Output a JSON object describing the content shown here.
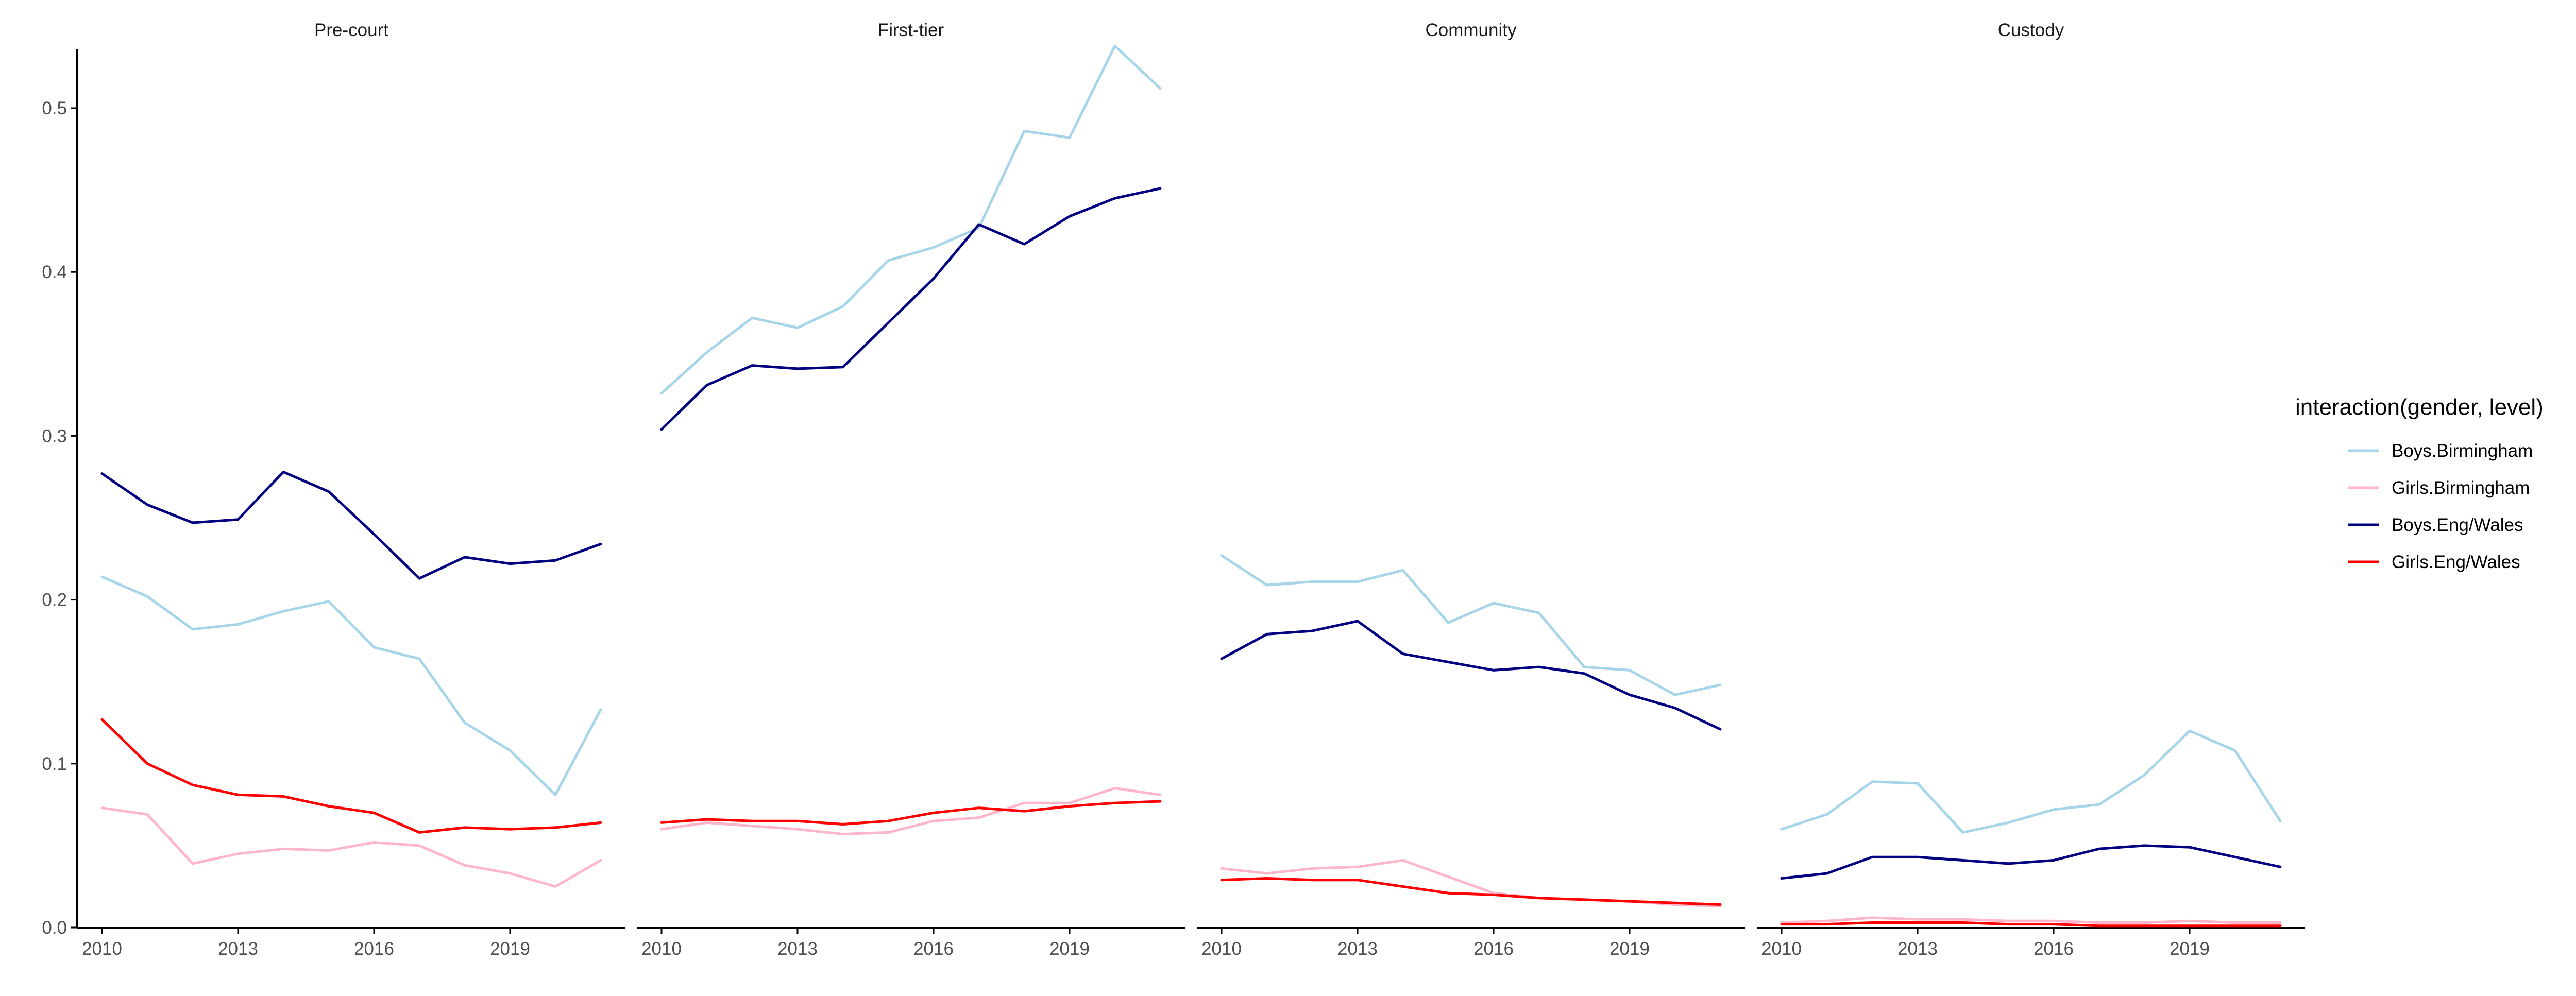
{
  "chart_data": {
    "type": "line",
    "facets": [
      "Pre-court",
      "First-tier",
      "Community",
      "Custody"
    ],
    "x": [
      2010,
      2011,
      2012,
      2013,
      2014,
      2015,
      2016,
      2017,
      2018,
      2019,
      2020,
      2021
    ],
    "x_ticks": [
      "2010",
      "2013",
      "2016",
      "2019"
    ],
    "y_ticks": [
      "0.0",
      "0.1",
      "0.2",
      "0.3",
      "0.4",
      "0.5"
    ],
    "ylim": [
      0,
      0.537
    ],
    "xlim": [
      2009.8,
      2021.2
    ],
    "legend": {
      "title": "interaction(gender, level)",
      "position": "right",
      "entries": [
        "Boys.Birmingham",
        "Girls.Birmingham",
        "Boys.Eng/Wales",
        "Girls.Eng/Wales"
      ]
    },
    "colors": {
      "Boys.Birmingham": "#a6d5ea",
      "Girls.Birmingham": "#ffb6c8",
      "Boys.Eng/Wales": "#000080",
      "Girls.Eng/Wales": "#ff0000"
    },
    "panels": [
      {
        "facet": "Pre-court",
        "series": [
          {
            "name": "Boys.Birmingham",
            "values": [
              0.214,
              0.202,
              0.182,
              0.185,
              0.193,
              0.199,
              0.171,
              0.164,
              0.125,
              0.108,
              0.081,
              0.133
            ]
          },
          {
            "name": "Girls.Birmingham",
            "values": [
              0.073,
              0.069,
              0.039,
              0.045,
              0.048,
              0.047,
              0.052,
              0.05,
              0.038,
              0.033,
              0.025,
              0.041
            ]
          },
          {
            "name": "Boys.Eng/Wales",
            "values": [
              0.277,
              0.258,
              0.247,
              0.249,
              0.278,
              0.266,
              0.24,
              0.213,
              0.226,
              0.222,
              0.224,
              0.234
            ]
          },
          {
            "name": "Girls.Eng/Wales",
            "values": [
              0.127,
              0.1,
              0.087,
              0.081,
              0.08,
              0.074,
              0.07,
              0.058,
              0.061,
              0.06,
              0.061,
              0.064
            ]
          }
        ]
      },
      {
        "facet": "First-tier",
        "series": [
          {
            "name": "Boys.Birmingham",
            "values": [
              0.326,
              0.351,
              0.372,
              0.366,
              0.379,
              0.407,
              0.415,
              0.427,
              0.486,
              0.482,
              0.538,
              0.512
            ]
          },
          {
            "name": "Girls.Birmingham",
            "values": [
              0.06,
              0.064,
              0.062,
              0.06,
              0.057,
              0.058,
              0.065,
              0.067,
              0.076,
              0.076,
              0.085,
              0.081
            ]
          },
          {
            "name": "Boys.Eng/Wales",
            "values": [
              0.304,
              0.331,
              0.343,
              0.341,
              0.342,
              0.369,
              0.396,
              0.429,
              0.417,
              0.434,
              0.445,
              0.451
            ]
          },
          {
            "name": "Girls.Eng/Wales",
            "values": [
              0.064,
              0.066,
              0.065,
              0.065,
              0.063,
              0.065,
              0.07,
              0.073,
              0.071,
              0.074,
              0.076,
              0.077
            ]
          }
        ]
      },
      {
        "facet": "Community",
        "series": [
          {
            "name": "Boys.Birmingham",
            "values": [
              0.227,
              0.209,
              0.211,
              0.211,
              0.218,
              0.186,
              0.198,
              0.192,
              0.159,
              0.157,
              0.142,
              0.148
            ]
          },
          {
            "name": "Girls.Birmingham",
            "values": [
              0.036,
              0.033,
              0.036,
              0.037,
              0.041,
              0.031,
              0.021,
              0.018,
              0.017,
              0.016,
              0.014,
              0.013
            ]
          },
          {
            "name": "Boys.Eng/Wales",
            "values": [
              0.164,
              0.179,
              0.181,
              0.187,
              0.167,
              0.162,
              0.157,
              0.159,
              0.155,
              0.142,
              0.134,
              0.121
            ]
          },
          {
            "name": "Girls.Eng/Wales",
            "values": [
              0.029,
              0.03,
              0.029,
              0.029,
              0.025,
              0.021,
              0.02,
              0.018,
              0.017,
              0.016,
              0.015,
              0.014
            ]
          }
        ]
      },
      {
        "facet": "Custody",
        "series": [
          {
            "name": "Boys.Birmingham",
            "values": [
              0.06,
              0.069,
              0.089,
              0.088,
              0.058,
              0.064,
              0.072,
              0.075,
              0.093,
              0.12,
              0.108,
              0.065
            ]
          },
          {
            "name": "Girls.Birmingham",
            "values": [
              0.003,
              0.004,
              0.006,
              0.005,
              0.005,
              0.004,
              0.004,
              0.003,
              0.003,
              0.004,
              0.003,
              0.003
            ]
          },
          {
            "name": "Boys.Eng/Wales",
            "values": [
              0.03,
              0.033,
              0.043,
              0.043,
              0.041,
              0.039,
              0.041,
              0.048,
              0.05,
              0.049,
              0.043,
              0.037
            ]
          },
          {
            "name": "Girls.Eng/Wales",
            "values": [
              0.002,
              0.002,
              0.003,
              0.003,
              0.003,
              0.002,
              0.002,
              0.001,
              0.001,
              0.001,
              0.001,
              0.001
            ]
          }
        ]
      }
    ]
  }
}
